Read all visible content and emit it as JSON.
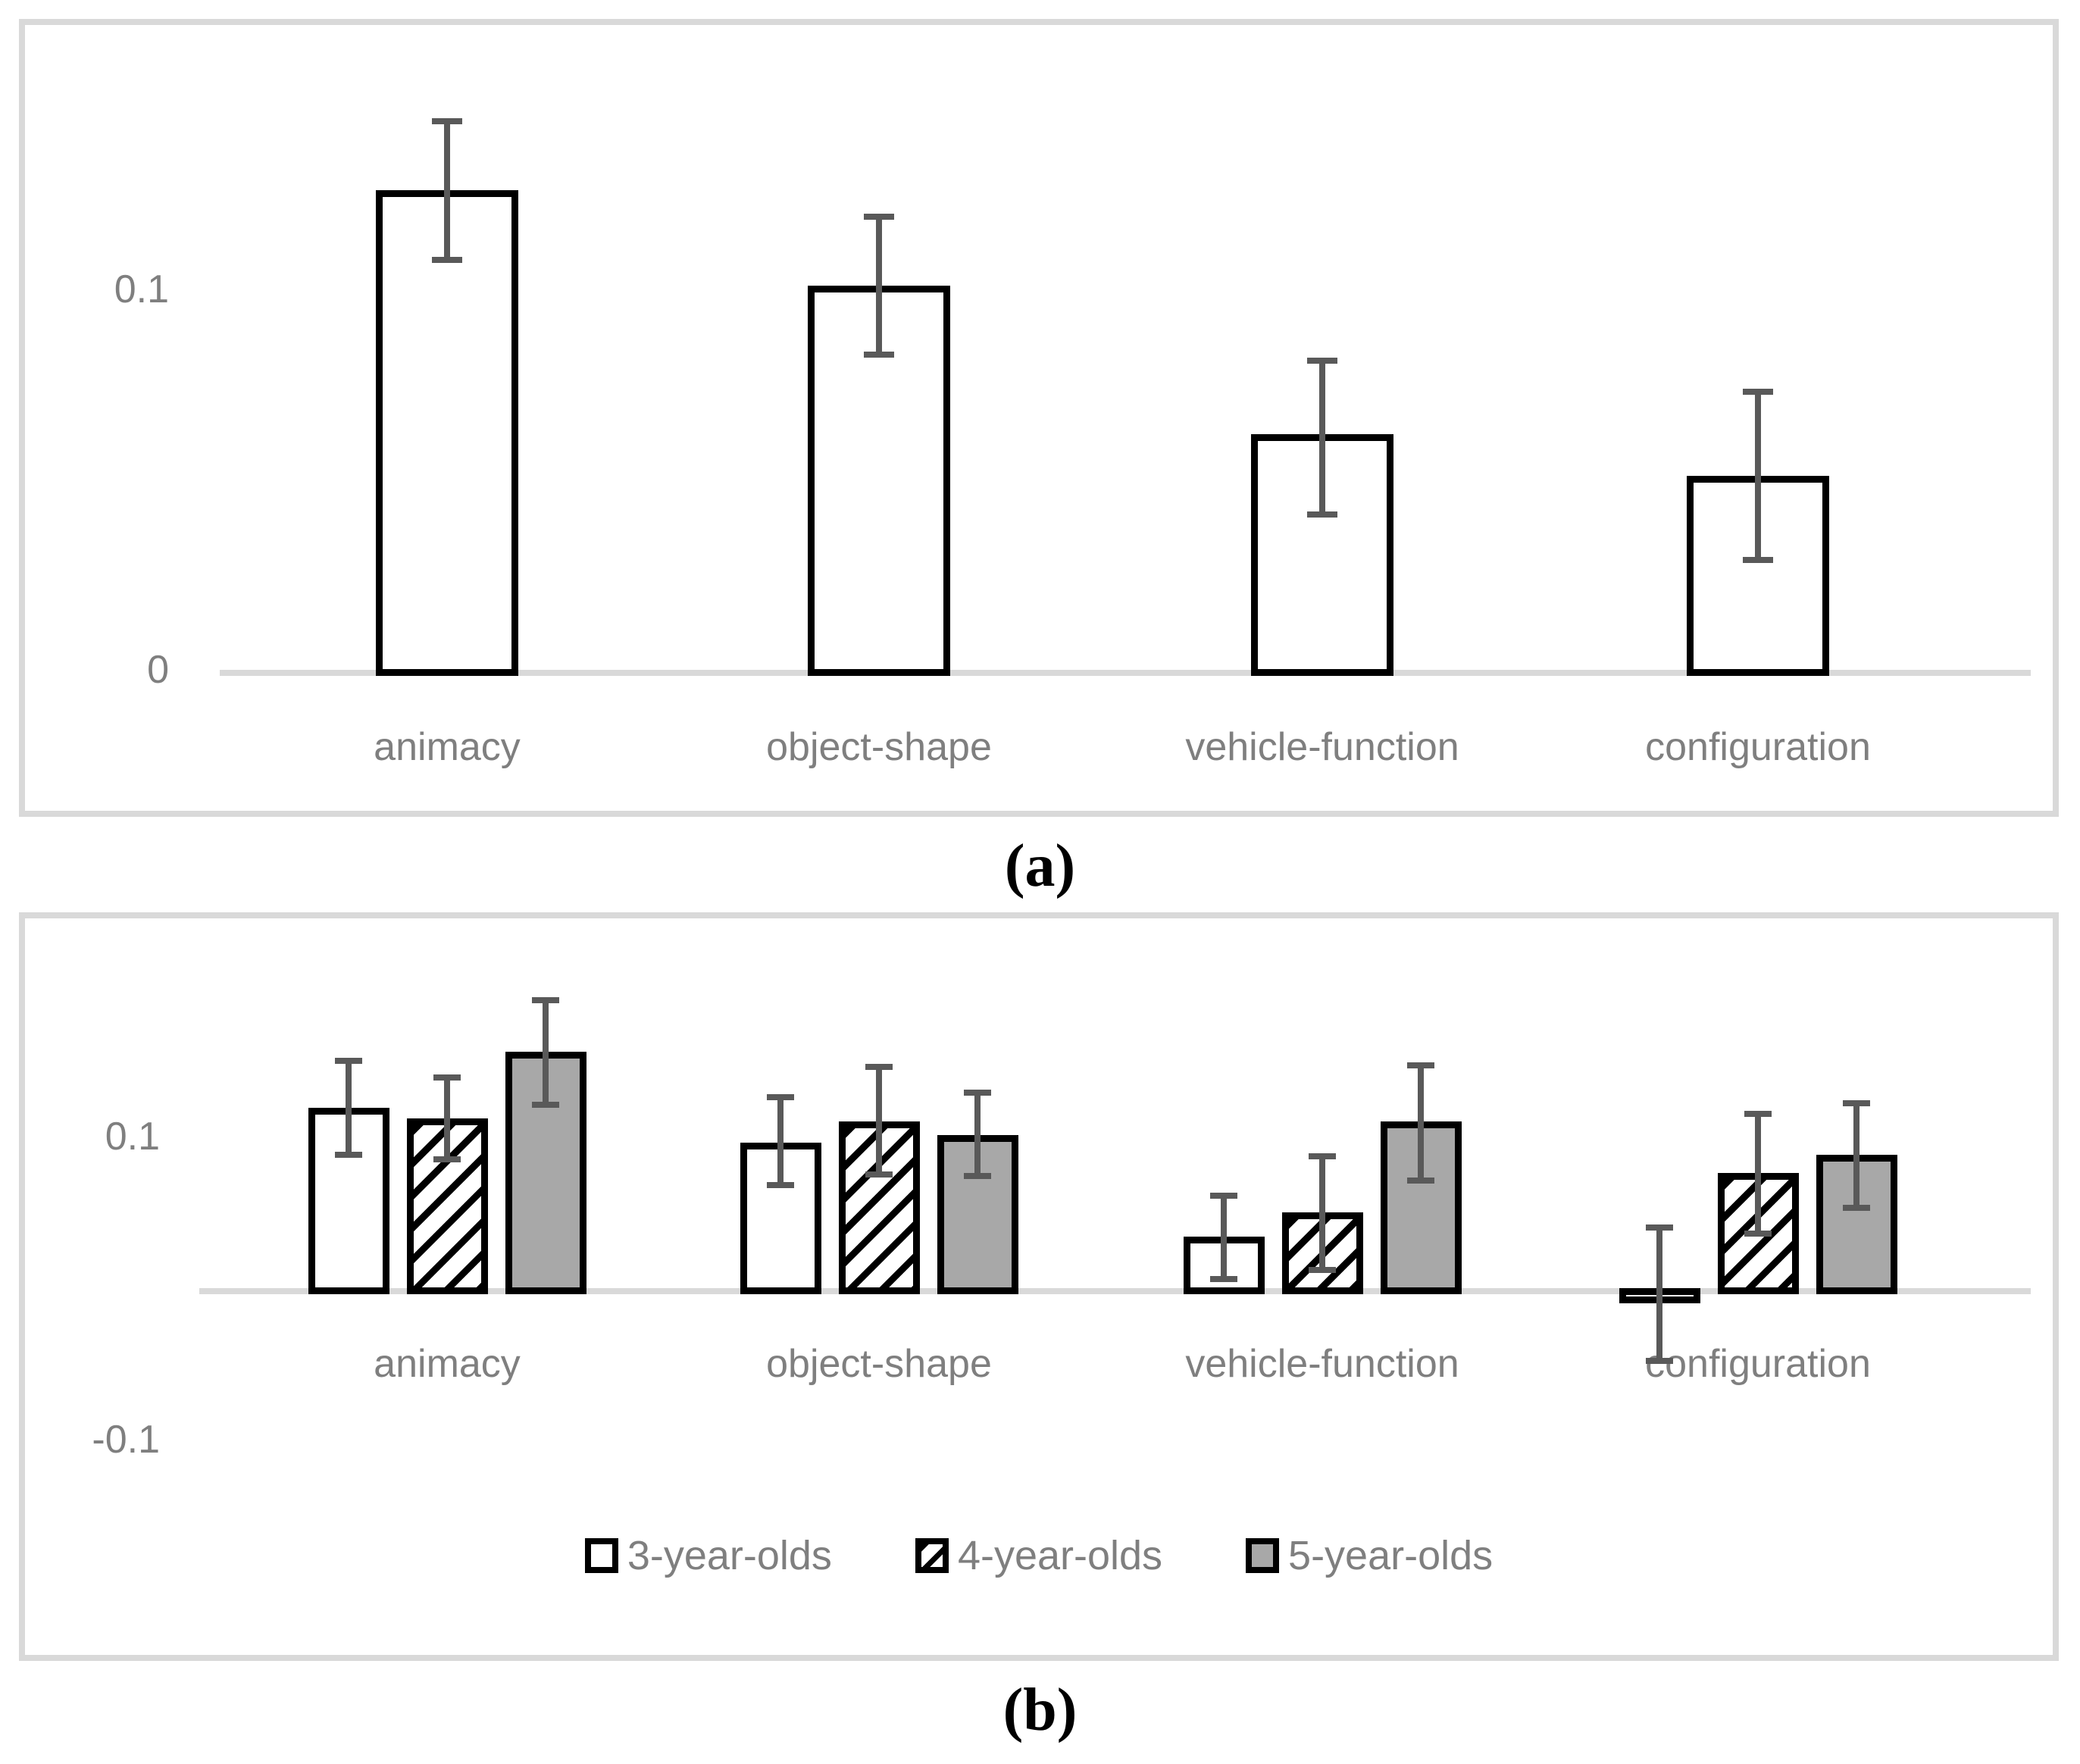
{
  "figure": {
    "caption_a": "(a)",
    "caption_b": "(b)"
  },
  "colors": {
    "panel_border": "#d9d9d9",
    "axis": "#d9d9d9",
    "error_bar": "#595959",
    "text_gray": "#7f7f7f",
    "gray_fill": "#a8a8a8",
    "bar_outline": "#000000"
  },
  "chart_data": [
    {
      "type": "bar",
      "panel": "a",
      "title": "",
      "xlabel": "",
      "ylabel": "",
      "categories": [
        "animacy",
        "object-shape",
        "vehicle-function",
        "configuration"
      ],
      "values": [
        0.126,
        0.101,
        0.062,
        0.051
      ],
      "error_upper": [
        0.145,
        0.12,
        0.082,
        0.074
      ],
      "error_lower": [
        0.107,
        0.082,
        0.04,
        0.028
      ],
      "yticks": [
        {
          "label": "0.1",
          "value": 0.1
        },
        {
          "label": "0",
          "value": 0
        }
      ],
      "ylim": [
        -0.04,
        0.17
      ],
      "grid": false,
      "bar_fill": "white"
    },
    {
      "type": "bar",
      "panel": "b",
      "title": "",
      "xlabel": "",
      "ylabel": "",
      "categories": [
        "animacy",
        "object-shape",
        "vehicle-function",
        "configuration"
      ],
      "series": [
        {
          "name": "3-year-olds",
          "fill": "white",
          "values": [
            0.119,
            0.096,
            0.034,
            -0.006
          ],
          "error_upper": [
            0.152,
            0.128,
            0.063,
            0.042
          ],
          "error_lower": [
            0.086,
            0.066,
            0.004,
            -0.05
          ]
        },
        {
          "name": "4-year-olds",
          "fill": "hatch",
          "values": [
            0.112,
            0.11,
            0.05,
            0.076
          ],
          "error_upper": [
            0.141,
            0.148,
            0.089,
            0.117
          ],
          "error_lower": [
            0.083,
            0.073,
            0.01,
            0.034
          ]
        },
        {
          "name": "5-year-olds",
          "fill": "gray",
          "values": [
            0.156,
            0.101,
            0.11,
            0.088
          ],
          "error_upper": [
            0.192,
            0.131,
            0.149,
            0.124
          ],
          "error_lower": [
            0.119,
            0.072,
            0.069,
            0.051
          ]
        }
      ],
      "yticks": [
        {
          "label": "0.1",
          "value": 0.1
        },
        {
          "label": "-0.1",
          "value": -0.1
        }
      ],
      "ylim": [
        -0.24,
        0.24
      ],
      "grid": false,
      "legend_position": "bottom"
    }
  ]
}
